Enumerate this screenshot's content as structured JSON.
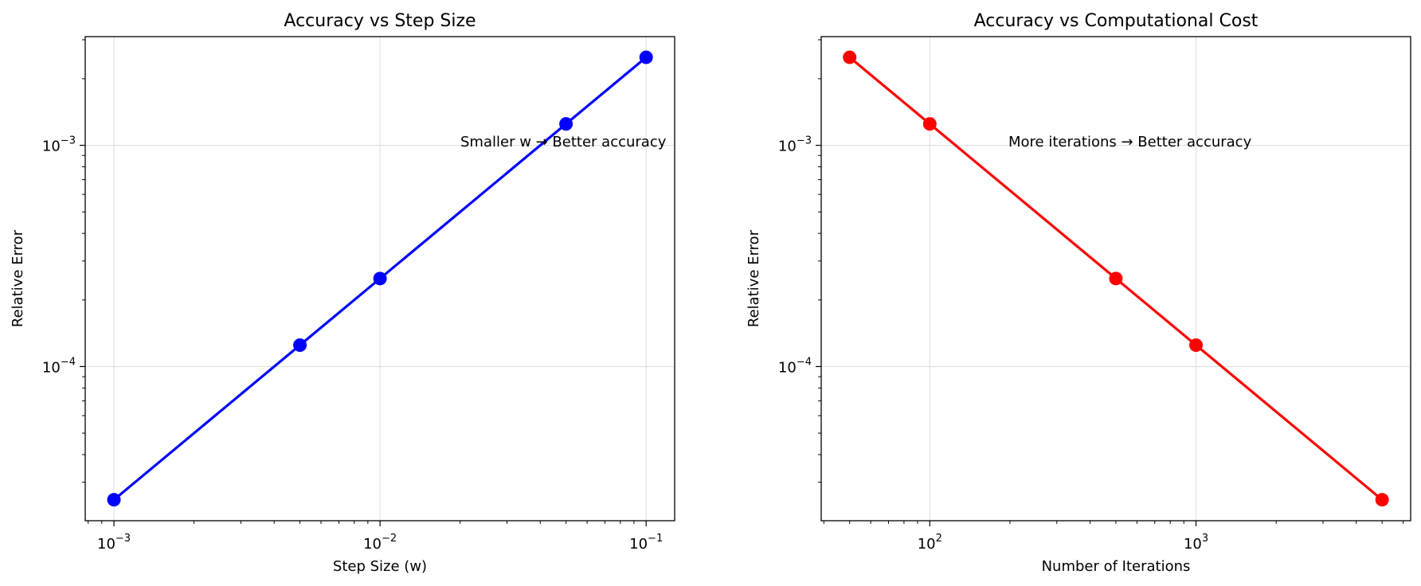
{
  "chart_data": [
    {
      "type": "line",
      "title": "Accuracy vs Step Size",
      "xlabel": "Step Size (w)",
      "ylabel": "Relative Error",
      "xscale": "log",
      "yscale": "log",
      "grid": true,
      "color": "#0000ff",
      "x": [
        0.001,
        0.005,
        0.01,
        0.05,
        0.1
      ],
      "y": [
        2.5e-05,
        0.000125,
        0.00025,
        0.00125,
        0.0025
      ],
      "xlim": [
        0.00078,
        0.128
      ],
      "ylim": [
        2.01e-05,
        0.0031
      ],
      "x_ticks": [
        {
          "value": 0.001,
          "base": "10",
          "exp": "−3"
        },
        {
          "value": 0.01,
          "base": "10",
          "exp": "−2"
        },
        {
          "value": 0.1,
          "base": "10",
          "exp": "−1"
        }
      ],
      "y_ticks": [
        {
          "value": 0.0001,
          "base": "10",
          "exp": "−4"
        },
        {
          "value": 0.001,
          "base": "10",
          "exp": "−3"
        }
      ],
      "annotation": {
        "text": "Smaller w → Better accuracy",
        "x": 0.02,
        "y": 0.001
      }
    },
    {
      "type": "line",
      "title": "Accuracy vs Computational Cost",
      "xlabel": "Number of Iterations",
      "ylabel": "Relative Error",
      "xscale": "log",
      "yscale": "log",
      "grid": true,
      "color": "#ff0000",
      "x": [
        50,
        100,
        500,
        1000,
        5000
      ],
      "y": [
        0.0025,
        0.00125,
        0.00025,
        0.000125,
        2.5e-05
      ],
      "xlim": [
        39.1,
        6400
      ],
      "ylim": [
        2.01e-05,
        0.0031
      ],
      "x_ticks": [
        {
          "value": 100,
          "base": "10",
          "exp": "2"
        },
        {
          "value": 1000,
          "base": "10",
          "exp": "3"
        }
      ],
      "y_ticks": [
        {
          "value": 0.0001,
          "base": "10",
          "exp": "−4"
        },
        {
          "value": 0.001,
          "base": "10",
          "exp": "−3"
        }
      ],
      "annotation": {
        "text": "More iterations → Better accuracy",
        "x": 200,
        "y": 0.001
      }
    }
  ]
}
